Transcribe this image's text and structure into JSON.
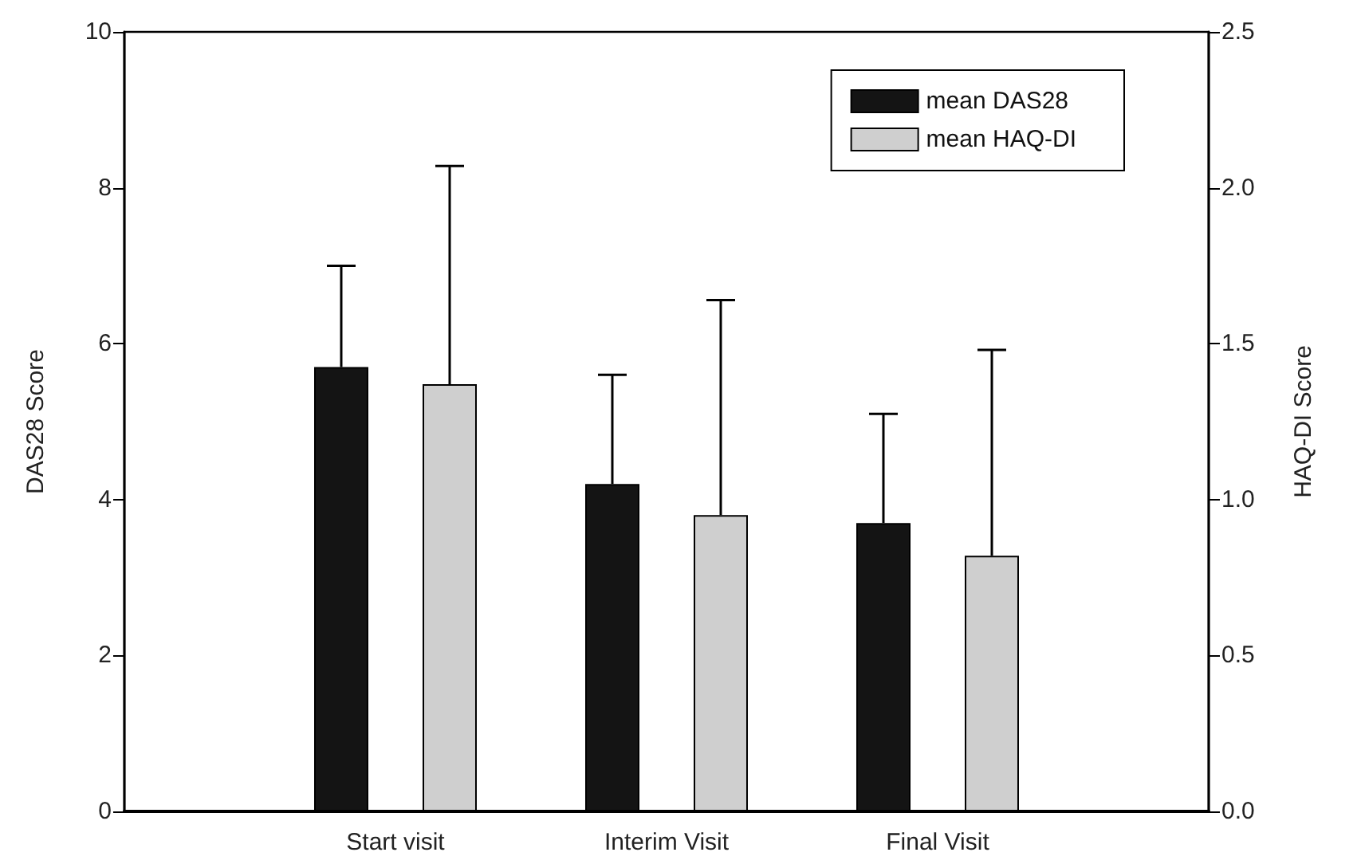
{
  "chart_data": {
    "type": "bar",
    "categories": [
      "Start visit",
      "Interim Visit",
      "Final Visit"
    ],
    "ylabel": "DAS28 Score",
    "y2label": "HAQ-DI Score",
    "series": [
      {
        "name": "mean DAS28",
        "color": "#141414",
        "values": [
          5.7,
          4.2,
          3.7
        ],
        "errors": [
          [
            5.7,
            7.0
          ],
          [
            4.2,
            5.6
          ],
          [
            3.7,
            5.1
          ]
        ]
      },
      {
        "name": "mean HAQ-DI",
        "color": "#cfcfcf",
        "axis": "y2",
        "values": [
          1.37,
          0.95,
          0.82
        ],
        "errors": [
          [
            1.37,
            2.07
          ],
          [
            0.95,
            1.64
          ],
          [
            0.82,
            1.48
          ]
        ]
      }
    ],
    "ylim": [
      0,
      10
    ],
    "yticks": [
      0,
      2,
      4,
      6,
      8,
      10
    ],
    "y2lim": [
      0,
      2.5
    ],
    "y2ticks": [
      {
        "value": 0,
        "label": "0.0"
      },
      {
        "value": 0.5,
        "label": "0.5"
      },
      {
        "value": 1,
        "label": "1.0"
      },
      {
        "value": 1.5,
        "label": "1.5"
      },
      {
        "value": 2,
        "label": "2.0"
      },
      {
        "value": 2.5,
        "label": "2.5"
      }
    ],
    "grid": false,
    "legend": "top right"
  }
}
